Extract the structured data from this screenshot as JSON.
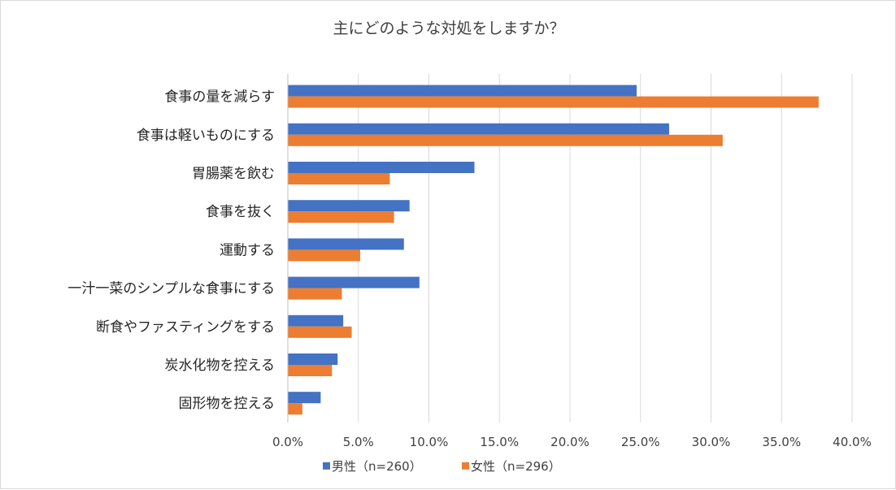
{
  "chart_data": {
    "type": "bar",
    "orientation": "horizontal",
    "title": "主にどのような対処をしますか？",
    "categories": [
      "食事の量を減らす",
      "食事は軽いものにする",
      "胃腸薬を飲む",
      "食事を抜く",
      "運動する",
      "一汁一菜のシンプルな食事にする",
      "断食やファスティングをする",
      "炭水化物を控える",
      "固形物を控える"
    ],
    "series": [
      {
        "name": "男性（n=260）",
        "color": "#4472c4",
        "values": [
          24.7,
          27.0,
          13.2,
          8.6,
          8.2,
          9.3,
          3.9,
          3.5,
          2.3
        ]
      },
      {
        "name": "女性（n=296）",
        "color": "#ed7d31",
        "values": [
          37.6,
          30.8,
          7.2,
          7.5,
          5.1,
          3.8,
          4.5,
          3.1,
          1.0
        ]
      }
    ],
    "xlim": [
      0,
      40
    ],
    "xticks": [
      "0.0%",
      "5.0%",
      "10.0%",
      "15.0%",
      "20.0%",
      "25.0%",
      "30.0%",
      "35.0%",
      "40.0%"
    ],
    "legend_position": "bottom",
    "grid": true
  }
}
